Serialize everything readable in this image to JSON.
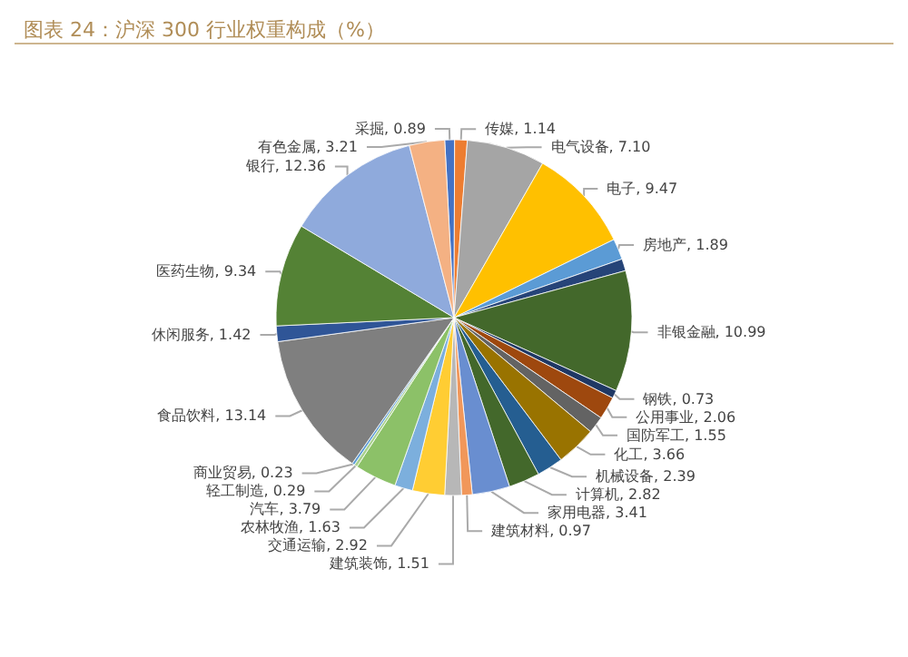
{
  "chart_data": {
    "type": "pie",
    "title": "图表 24：沪深 300 行业权重构成（%）",
    "categories": [
      "采掘",
      "传媒",
      "电气设备",
      "电子",
      "房地产",
      null,
      "非银金融",
      "钢铁",
      "公用事业",
      "国防军工",
      "化工",
      "机械设备",
      "计算机",
      "家用电器",
      "建筑材料",
      "建筑装饰",
      "交通运输",
      "农林牧渔",
      "汽车",
      "轻工制造",
      "商业贸易",
      "食品饮料",
      "休闲服务",
      "医药生物",
      "银行",
      "有色金属"
    ],
    "values": [
      0.89,
      1.14,
      7.1,
      9.47,
      1.89,
      1.09,
      10.99,
      0.73,
      2.06,
      1.55,
      3.66,
      2.39,
      2.82,
      3.41,
      0.97,
      1.51,
      2.92,
      1.63,
      3.79,
      0.29,
      0.23,
      13.14,
      1.42,
      9.34,
      12.36,
      3.21
    ],
    "value_labels": [
      "0.89",
      "1.14",
      "7.10",
      "9.47",
      "1.89",
      null,
      "10.99",
      "0.73",
      "2.06",
      "1.55",
      "3.66",
      "2.39",
      "2.82",
      "3.41",
      "0.97",
      "1.51",
      "2.92",
      "1.63",
      "3.79",
      "0.29",
      "0.23",
      "13.14",
      "1.42",
      "9.34",
      "12.36",
      "3.21"
    ],
    "colors": [
      "#4472c4",
      "#ed7d31",
      "#a5a5a5",
      "#ffc000",
      "#5b9bd5",
      "#264478",
      "#43682b",
      "#1f3864",
      "#9e480e",
      "#636363",
      "#997300",
      "#255e91",
      "#43682b",
      "#698ed0",
      "#f1975a",
      "#b7b7b7",
      "#ffcd33",
      "#7cafdd",
      "#8cc168",
      "#a9d18e",
      "#5b9bd5",
      "#7f7f7f",
      "#2f5597",
      "#548235",
      "#8faadc",
      "#f4b183"
    ],
    "legend": false
  }
}
